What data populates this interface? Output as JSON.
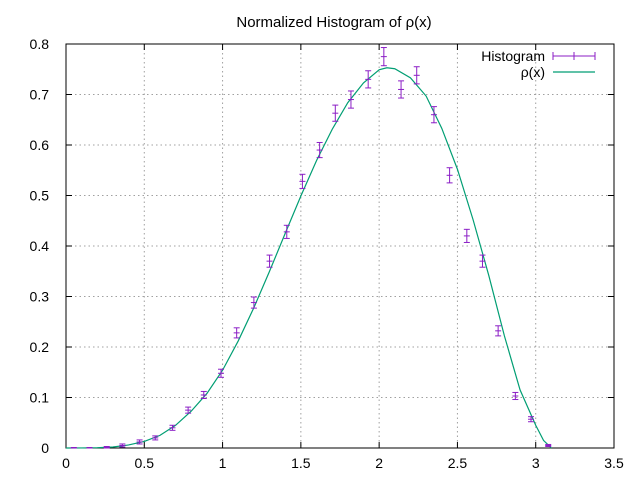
{
  "chart_data": {
    "type": "scatter",
    "title": "Normalized Histogram of ρ(x)",
    "xlabel": "",
    "ylabel": "",
    "xlim": [
      0,
      3.5
    ],
    "ylim": [
      0,
      0.8
    ],
    "x_ticks": [
      "0",
      "0.5",
      "1",
      "1.5",
      "2",
      "2.5",
      "3",
      "3.5"
    ],
    "y_ticks": [
      "0",
      "0.1",
      "0.2",
      "0.3",
      "0.4",
      "0.5",
      "0.6",
      "0.7",
      "0.8"
    ],
    "grid": true,
    "legend_position": "top-right",
    "series": [
      {
        "name": "Histogram",
        "style": "points with error bars",
        "color": "#8b1ec6",
        "points": [
          {
            "x": 0.05,
            "y": 0.0,
            "err": 0.001
          },
          {
            "x": 0.15,
            "y": 0.0,
            "err": 0.001
          },
          {
            "x": 0.26,
            "y": 0.001,
            "err": 0.002
          },
          {
            "x": 0.36,
            "y": 0.005,
            "err": 0.003
          },
          {
            "x": 0.47,
            "y": 0.012,
            "err": 0.004
          },
          {
            "x": 0.57,
            "y": 0.02,
            "err": 0.004
          },
          {
            "x": 0.68,
            "y": 0.04,
            "err": 0.005
          },
          {
            "x": 0.78,
            "y": 0.075,
            "err": 0.006
          },
          {
            "x": 0.88,
            "y": 0.105,
            "err": 0.007
          },
          {
            "x": 0.99,
            "y": 0.148,
            "err": 0.008
          },
          {
            "x": 1.09,
            "y": 0.228,
            "err": 0.01
          },
          {
            "x": 1.2,
            "y": 0.288,
            "err": 0.011
          },
          {
            "x": 1.3,
            "y": 0.37,
            "err": 0.012
          },
          {
            "x": 1.41,
            "y": 0.428,
            "err": 0.013
          },
          {
            "x": 1.51,
            "y": 0.528,
            "err": 0.014
          },
          {
            "x": 1.62,
            "y": 0.59,
            "err": 0.015
          },
          {
            "x": 1.72,
            "y": 0.663,
            "err": 0.016
          },
          {
            "x": 1.82,
            "y": 0.69,
            "err": 0.017
          },
          {
            "x": 1.93,
            "y": 0.73,
            "err": 0.017
          },
          {
            "x": 2.03,
            "y": 0.775,
            "err": 0.018
          },
          {
            "x": 2.14,
            "y": 0.71,
            "err": 0.017
          },
          {
            "x": 2.24,
            "y": 0.738,
            "err": 0.017
          },
          {
            "x": 2.35,
            "y": 0.66,
            "err": 0.016
          },
          {
            "x": 2.45,
            "y": 0.54,
            "err": 0.015
          },
          {
            "x": 2.56,
            "y": 0.42,
            "err": 0.013
          },
          {
            "x": 2.66,
            "y": 0.37,
            "err": 0.012
          },
          {
            "x": 2.76,
            "y": 0.232,
            "err": 0.01
          },
          {
            "x": 2.87,
            "y": 0.103,
            "err": 0.007
          },
          {
            "x": 2.97,
            "y": 0.057,
            "err": 0.005
          },
          {
            "x": 3.08,
            "y": 0.005,
            "err": 0.002
          }
        ]
      },
      {
        "name": "ρ(x)",
        "style": "line",
        "color": "#009e73",
        "x": [
          0,
          0.1,
          0.2,
          0.3,
          0.4,
          0.5,
          0.6,
          0.7,
          0.8,
          0.9,
          1.0,
          1.1,
          1.2,
          1.3,
          1.4,
          1.5,
          1.6,
          1.7,
          1.8,
          1.9,
          2.0,
          2.05,
          2.1,
          2.2,
          2.3,
          2.4,
          2.5,
          2.6,
          2.7,
          2.8,
          2.9,
          3.0,
          3.05,
          3.1
        ],
        "y": [
          0,
          0.0001,
          0.0006,
          0.002,
          0.006,
          0.013,
          0.025,
          0.045,
          0.073,
          0.108,
          0.154,
          0.212,
          0.278,
          0.35,
          0.425,
          0.499,
          0.569,
          0.631,
          0.684,
          0.723,
          0.749,
          0.753,
          0.751,
          0.733,
          0.697,
          0.633,
          0.552,
          0.452,
          0.342,
          0.222,
          0.115,
          0.045,
          0.015,
          0.0
        ]
      }
    ]
  }
}
